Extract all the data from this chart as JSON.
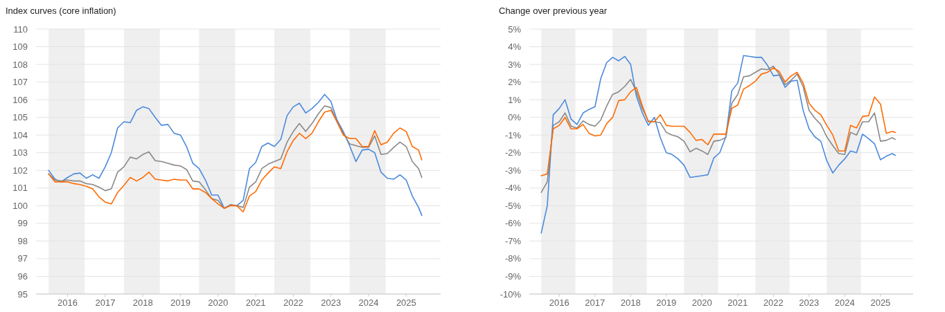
{
  "chart_data": [
    {
      "type": "line",
      "title": "Index curves (core inflation)",
      "x": [
        "2015-07",
        "2015-09",
        "2015-11",
        "2016-01",
        "2016-03",
        "2016-05",
        "2016-07",
        "2016-09",
        "2016-11",
        "2017-01",
        "2017-03",
        "2017-05",
        "2017-07",
        "2017-09",
        "2017-11",
        "2018-01",
        "2018-03",
        "2018-05",
        "2018-07",
        "2018-09",
        "2018-11",
        "2019-01",
        "2019-03",
        "2019-05",
        "2019-07",
        "2019-09",
        "2019-11",
        "2020-01",
        "2020-03",
        "2020-05",
        "2020-07",
        "2020-09",
        "2020-11",
        "2021-01",
        "2021-03",
        "2021-05",
        "2021-07",
        "2021-09",
        "2021-11",
        "2022-01",
        "2022-03",
        "2022-05",
        "2022-07",
        "2022-09",
        "2022-11",
        "2023-01",
        "2023-03",
        "2023-05",
        "2023-07",
        "2023-09",
        "2023-11",
        "2024-01",
        "2024-03",
        "2024-05",
        "2024-07",
        "2024-09",
        "2024-11",
        "2025-01",
        "2025-03",
        "2025-05",
        "2025-06"
      ],
      "series": [
        {
          "color": "#4a89dc",
          "values": [
            102.0,
            101.5,
            101.35,
            101.6,
            101.8,
            101.85,
            101.55,
            101.75,
            101.55,
            102.2,
            103.0,
            104.4,
            104.75,
            104.7,
            105.4,
            105.6,
            105.5,
            105.0,
            104.55,
            104.6,
            104.1,
            104.0,
            103.35,
            102.4,
            102.1,
            101.45,
            100.6,
            100.6,
            99.85,
            100.05,
            100.0,
            100.3,
            102.1,
            102.45,
            103.35,
            103.55,
            103.35,
            103.75,
            105.1,
            105.6,
            105.8,
            105.25,
            105.5,
            105.85,
            106.3,
            105.9,
            104.85,
            104.2,
            103.4,
            102.5,
            103.15,
            103.2,
            103.0,
            101.9,
            101.55,
            101.5,
            101.75,
            101.45,
            100.55,
            99.9,
            99.45
          ]
        },
        {
          "color": "#888888",
          "values": [
            101.8,
            101.45,
            101.4,
            101.45,
            101.4,
            101.4,
            101.25,
            101.2,
            101.05,
            100.85,
            100.95,
            101.9,
            102.2,
            102.75,
            102.65,
            102.9,
            103.05,
            102.55,
            102.5,
            102.4,
            102.3,
            102.25,
            102.05,
            101.4,
            101.35,
            100.9,
            100.4,
            100.3,
            99.85,
            100.05,
            100.0,
            99.9,
            101.05,
            101.35,
            102.1,
            102.35,
            102.5,
            102.65,
            103.6,
            104.2,
            104.65,
            104.2,
            104.65,
            105.2,
            105.65,
            105.55,
            104.75,
            104.1,
            103.5,
            103.4,
            103.3,
            103.3,
            103.95,
            102.9,
            102.95,
            103.3,
            103.6,
            103.35,
            102.5,
            102.1,
            101.6
          ]
        },
        {
          "color": "#ff6a00",
          "values": [
            101.8,
            101.35,
            101.35,
            101.35,
            101.25,
            101.2,
            101.1,
            100.95,
            100.5,
            100.2,
            100.1,
            100.75,
            101.15,
            101.6,
            101.4,
            101.6,
            101.9,
            101.5,
            101.45,
            101.4,
            101.5,
            101.45,
            101.45,
            100.95,
            100.95,
            100.75,
            100.4,
            100.1,
            99.85,
            100.0,
            100.0,
            99.65,
            100.55,
            100.8,
            101.45,
            101.85,
            102.2,
            102.1,
            103.05,
            103.7,
            104.1,
            103.8,
            104.1,
            104.75,
            105.3,
            105.4,
            104.75,
            104.0,
            103.8,
            103.8,
            103.35,
            103.35,
            104.25,
            103.45,
            103.6,
            104.1,
            104.4,
            104.2,
            103.35,
            103.15,
            102.6
          ]
        }
      ],
      "xlim": [
        "2015-03",
        "2025-12"
      ],
      "xticks": [
        "2016",
        "2017",
        "2018",
        "2019",
        "2020",
        "2021",
        "2022",
        "2023",
        "2024",
        "2025"
      ],
      "ylim": [
        95,
        110
      ],
      "yticks": [
        95,
        96,
        97,
        98,
        99,
        100,
        101,
        102,
        103,
        104,
        105,
        106,
        107,
        108,
        109,
        110
      ],
      "grid": "y",
      "bands": [
        {
          "axis": "x",
          "from": "2015-07",
          "to": "2016-06-15",
          "color": "#efefef"
        },
        {
          "axis": "x",
          "from": "2017-07",
          "to": "2018-06-15",
          "color": "#efefef"
        },
        {
          "axis": "x",
          "from": "2019-07",
          "to": "2020-06-15",
          "color": "#efefef"
        },
        {
          "axis": "x",
          "from": "2021-07",
          "to": "2022-06-15",
          "color": "#efefef"
        },
        {
          "axis": "x",
          "from": "2023-07",
          "to": "2024-06-15",
          "color": "#efefef"
        }
      ]
    },
    {
      "type": "line",
      "title": "Change over previous year",
      "x": [
        "2015-07",
        "2015-09",
        "2015-11",
        "2016-01",
        "2016-03",
        "2016-05",
        "2016-07",
        "2016-09",
        "2016-11",
        "2017-01",
        "2017-03",
        "2017-05",
        "2017-07",
        "2017-09",
        "2017-11",
        "2018-01",
        "2018-03",
        "2018-05",
        "2018-07",
        "2018-09",
        "2018-11",
        "2019-01",
        "2019-03",
        "2019-05",
        "2019-07",
        "2019-09",
        "2019-11",
        "2020-01",
        "2020-03",
        "2020-05",
        "2020-07",
        "2020-09",
        "2020-11",
        "2021-01",
        "2021-03",
        "2021-05",
        "2021-07",
        "2021-09",
        "2021-11",
        "2022-01",
        "2022-03",
        "2022-05",
        "2022-07",
        "2022-09",
        "2022-11",
        "2023-01",
        "2023-03",
        "2023-05",
        "2023-07",
        "2023-09",
        "2023-11",
        "2024-01",
        "2024-03",
        "2024-05",
        "2024-07",
        "2024-09",
        "2024-11",
        "2025-01",
        "2025-03",
        "2025-05",
        "2025-06"
      ],
      "series": [
        {
          "color": "#4a89dc",
          "values": [
            -6.55,
            -5.0,
            0.15,
            0.5,
            1.0,
            -0.1,
            -0.4,
            0.25,
            0.45,
            0.6,
            2.2,
            3.1,
            3.4,
            3.2,
            3.45,
            3.0,
            1.2,
            0.25,
            -0.45,
            0.0,
            -1.15,
            -2.0,
            -2.1,
            -2.35,
            -2.7,
            -3.4,
            -3.35,
            -3.3,
            -3.25,
            -2.3,
            -2.0,
            -1.1,
            1.5,
            1.95,
            3.5,
            3.45,
            3.4,
            3.4,
            2.95,
            2.35,
            2.4,
            1.7,
            2.05,
            2.1,
            0.4,
            -0.65,
            -1.1,
            -1.35,
            -2.45,
            -3.15,
            -2.7,
            -2.35,
            -1.9,
            -2.0,
            -0.95,
            -1.2,
            -1.5,
            -2.4,
            -2.2,
            -2.05,
            -2.15
          ]
        },
        {
          "color": "#888888",
          "values": [
            -4.25,
            -3.65,
            -0.45,
            -0.25,
            0.25,
            -0.5,
            -0.6,
            -0.2,
            -0.4,
            -0.5,
            -0.15,
            0.65,
            1.3,
            1.45,
            1.75,
            2.15,
            1.45,
            0.5,
            -0.2,
            -0.25,
            -0.3,
            -0.85,
            -1.0,
            -1.1,
            -1.35,
            -1.95,
            -1.75,
            -1.9,
            -2.1,
            -1.35,
            -1.3,
            -1.15,
            0.8,
            1.3,
            2.3,
            2.35,
            2.55,
            2.75,
            2.7,
            2.9,
            2.45,
            1.85,
            2.1,
            2.45,
            1.75,
            0.4,
            -0.05,
            -0.4,
            -1.1,
            -1.6,
            -2.05,
            -2.1,
            -0.85,
            -1.0,
            -0.25,
            -0.25,
            0.25,
            -1.35,
            -1.3,
            -1.15,
            -1.25
          ]
        },
        {
          "color": "#ff6a00",
          "values": [
            -3.3,
            -3.2,
            -0.65,
            -0.45,
            0.0,
            -0.65,
            -0.65,
            -0.4,
            -0.9,
            -1.05,
            -1.0,
            -0.35,
            0.0,
            0.95,
            1.0,
            1.45,
            1.7,
            0.65,
            -0.25,
            -0.25,
            0.15,
            -0.45,
            -0.5,
            -0.5,
            -0.5,
            -0.85,
            -1.3,
            -1.25,
            -1.55,
            -0.95,
            -0.95,
            -0.95,
            0.5,
            0.7,
            1.6,
            1.8,
            2.05,
            2.45,
            2.55,
            2.8,
            2.6,
            2.0,
            2.35,
            2.55,
            1.95,
            0.8,
            0.4,
            0.15,
            -0.45,
            -1.0,
            -1.9,
            -1.9,
            -0.45,
            -0.6,
            0.05,
            0.1,
            1.15,
            0.75,
            -0.9,
            -0.8,
            -0.85
          ]
        }
      ],
      "xlim": [
        "2015-03",
        "2025-12"
      ],
      "xticks": [
        "2016",
        "2017",
        "2018",
        "2019",
        "2020",
        "2021",
        "2022",
        "2023",
        "2024",
        "2025"
      ],
      "ylim": [
        -10,
        5
      ],
      "yticks": [
        {
          "value": -10,
          "label": "-10%"
        },
        {
          "value": -9,
          "label": "-9%"
        },
        {
          "value": -8,
          "label": "-8%"
        },
        {
          "value": -7,
          "label": "-7%"
        },
        {
          "value": -6,
          "label": "-6%"
        },
        {
          "value": -5,
          "label": "-5%"
        },
        {
          "value": -4,
          "label": "-4%"
        },
        {
          "value": -3,
          "label": "-3%"
        },
        {
          "value": -2,
          "label": "-2%"
        },
        {
          "value": -1,
          "label": "-1%"
        },
        {
          "value": 0,
          "label": "0%"
        },
        {
          "value": 1,
          "label": "1%"
        },
        {
          "value": 2,
          "label": "2%"
        },
        {
          "value": 3,
          "label": "3%"
        },
        {
          "value": 4,
          "label": "4%"
        },
        {
          "value": 5,
          "label": "5%"
        }
      ],
      "grid": "y",
      "bands": [
        {
          "axis": "x",
          "from": "2015-07",
          "to": "2016-06-15",
          "color": "#efefef"
        },
        {
          "axis": "x",
          "from": "2017-07",
          "to": "2018-06-15",
          "color": "#efefef"
        },
        {
          "axis": "x",
          "from": "2019-07",
          "to": "2020-06-15",
          "color": "#efefef"
        },
        {
          "axis": "x",
          "from": "2021-07",
          "to": "2022-06-15",
          "color": "#efefef"
        },
        {
          "axis": "x",
          "from": "2023-07",
          "to": "2024-06-15",
          "color": "#efefef"
        }
      ]
    }
  ]
}
